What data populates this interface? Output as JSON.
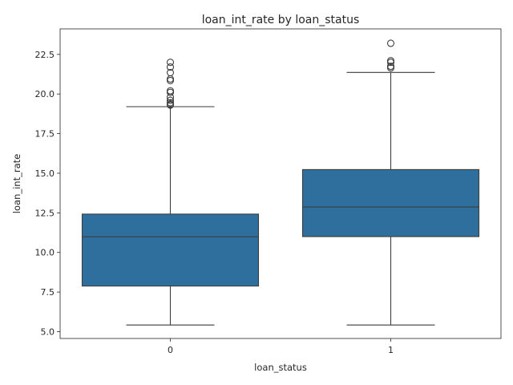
{
  "chart_data": {
    "type": "box",
    "title": "loan_int_rate by loan_status",
    "xlabel": "loan_status",
    "ylabel": "loan_int_rate",
    "categories": [
      "0",
      "1"
    ],
    "ylim": [
      4.57,
      24.11
    ],
    "yticks": [
      5.0,
      7.5,
      10.0,
      12.5,
      15.0,
      17.5,
      20.0,
      22.5
    ],
    "ytick_labels": [
      "5.0",
      "7.5",
      "10.0",
      "12.5",
      "15.0",
      "17.5",
      "20.0",
      "22.5"
    ],
    "grid": false,
    "box_color": "#2e6f9e",
    "edge_color": "#3d3d3d",
    "boxes": [
      {
        "category": "0",
        "whisker_low": 5.42,
        "q1": 7.88,
        "median": 10.99,
        "q3": 12.42,
        "whisker_high": 19.2,
        "outliers": [
          19.3,
          19.35,
          19.45,
          19.6,
          19.8,
          20.1,
          20.2,
          20.85,
          20.95,
          21.35,
          21.7,
          22.0
        ]
      },
      {
        "category": "1",
        "whisker_low": 5.42,
        "q1": 11.0,
        "median": 12.87,
        "q3": 15.23,
        "whisker_high": 21.36,
        "outliers": [
          21.65,
          21.75,
          22.0,
          22.1,
          23.2
        ]
      }
    ]
  }
}
